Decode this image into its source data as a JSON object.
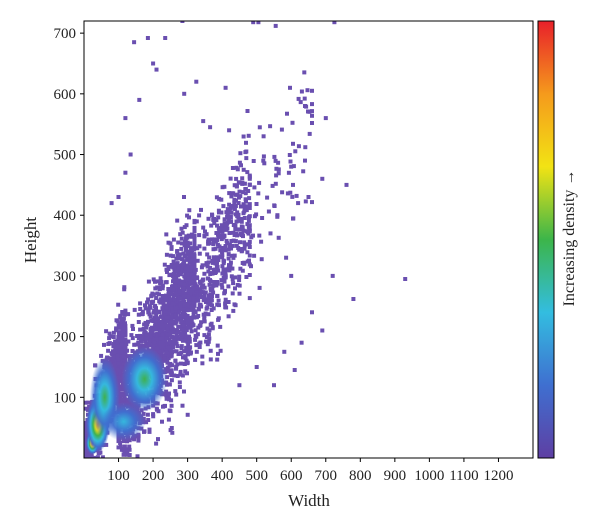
{
  "chart_data": {
    "type": "scatter",
    "title": "",
    "xlabel": "Width",
    "ylabel": "Height",
    "xlim": [
      0,
      1300
    ],
    "ylim": [
      0,
      720
    ],
    "x_ticks": [
      100,
      200,
      300,
      400,
      500,
      600,
      700,
      800,
      900,
      1000,
      1100,
      1200
    ],
    "y_ticks": [
      100,
      200,
      300,
      400,
      500,
      600,
      700
    ],
    "grid": false,
    "colorbar_label": "Increasing density →",
    "colorbar_colors": [
      "#5e3fa3",
      "#3f6fd0",
      "#33bde0",
      "#3cb54a",
      "#f2e314",
      "#f59a1c",
      "#e8202a"
    ],
    "marker_color": "#6a4fb0",
    "density_core": {
      "x": 25,
      "y": 25
    },
    "scatter_clusters": [
      {
        "x_range": [
          5,
          120
        ],
        "y_range": [
          5,
          200
        ],
        "approx_count": 900
      },
      {
        "x_range": [
          100,
          320
        ],
        "y_range": [
          60,
          330
        ],
        "approx_count": 1300
      },
      {
        "x_range": [
          200,
          480
        ],
        "y_range": [
          120,
          430
        ],
        "approx_count": 700
      },
      {
        "x_range": [
          300,
          660
        ],
        "y_range": [
          200,
          560
        ],
        "approx_count": 160
      }
    ],
    "sparse_points": [
      [
        145,
        685
      ],
      [
        185,
        692
      ],
      [
        235,
        692
      ],
      [
        285,
        720
      ],
      [
        490,
        718
      ],
      [
        505,
        718
      ],
      [
        555,
        712
      ],
      [
        725,
        718
      ],
      [
        200,
        650
      ],
      [
        210,
        640
      ],
      [
        325,
        620
      ],
      [
        410,
        610
      ],
      [
        160,
        590
      ],
      [
        290,
        600
      ],
      [
        660,
        605
      ],
      [
        640,
        580
      ],
      [
        700,
        560
      ],
      [
        600,
        480
      ],
      [
        640,
        490
      ],
      [
        690,
        460
      ],
      [
        760,
        450
      ],
      [
        650,
        430
      ],
      [
        620,
        420
      ],
      [
        560,
        400
      ],
      [
        930,
        295
      ],
      [
        780,
        262
      ],
      [
        690,
        210
      ],
      [
        630,
        190
      ],
      [
        580,
        175
      ],
      [
        610,
        145
      ],
      [
        660,
        240
      ],
      [
        720,
        300
      ],
      [
        520,
        530
      ],
      [
        470,
        505
      ],
      [
        540,
        370
      ],
      [
        585,
        330
      ],
      [
        600,
        300
      ],
      [
        500,
        150
      ],
      [
        450,
        120
      ],
      [
        550,
        120
      ],
      [
        120,
        560
      ],
      [
        100,
        430
      ],
      [
        80,
        420
      ],
      [
        120,
        470
      ],
      [
        135,
        500
      ],
      [
        345,
        555
      ],
      [
        365,
        545
      ],
      [
        420,
        540
      ]
    ],
    "dense_blobs": [
      {
        "x": 25,
        "y": 25,
        "sx": 14,
        "sy": 14,
        "level": 1.0
      },
      {
        "x": 40,
        "y": 55,
        "sx": 26,
        "sy": 34,
        "level": 0.75
      },
      {
        "x": 60,
        "y": 100,
        "sx": 36,
        "sy": 55,
        "level": 0.55
      },
      {
        "x": 175,
        "y": 130,
        "sx": 55,
        "sy": 45,
        "level": 0.42
      },
      {
        "x": 115,
        "y": 60,
        "sx": 60,
        "sy": 30,
        "level": 0.35
      }
    ]
  }
}
